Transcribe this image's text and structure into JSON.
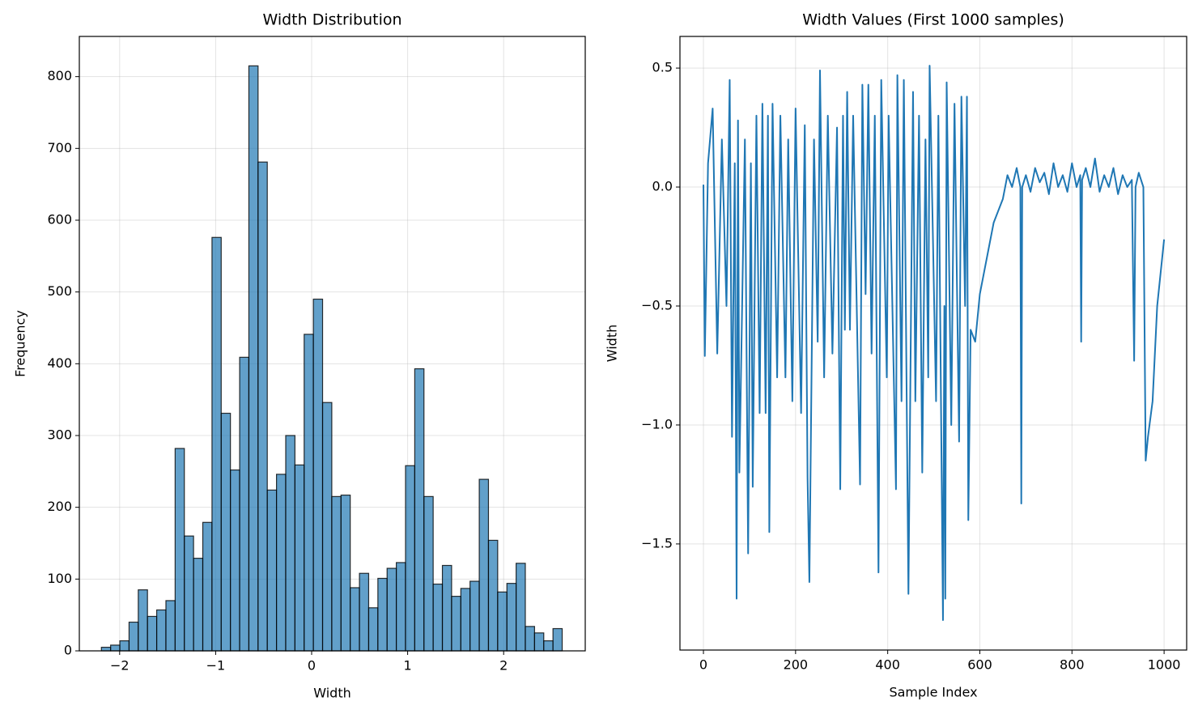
{
  "chart_data": [
    {
      "type": "histogram",
      "title": "Width Distribution",
      "xlabel": "Width",
      "ylabel": "Frequency",
      "bins": [
        -2.19,
        -2.094,
        -1.998,
        -1.902,
        -1.806,
        -1.71,
        -1.614,
        -1.518,
        -1.422,
        -1.326,
        -1.23,
        -1.134,
        -1.038,
        -0.942,
        -0.846,
        -0.75,
        -0.654,
        -0.558,
        -0.462,
        -0.366,
        -0.27,
        -0.174,
        -0.078,
        0.018,
        0.114,
        0.21,
        0.306,
        0.402,
        0.498,
        0.594,
        0.69,
        0.786,
        0.882,
        0.978,
        1.074,
        1.17,
        1.266,
        1.362,
        1.458,
        1.554,
        1.65,
        1.746,
        1.842,
        1.938,
        2.034,
        2.13,
        2.226,
        2.322,
        2.418,
        2.514,
        2.61
      ],
      "values": [
        5,
        8,
        14,
        40,
        85,
        48,
        57,
        70,
        282,
        160,
        129,
        179,
        576,
        331,
        252,
        409,
        815,
        681,
        224,
        246,
        300,
        259,
        441,
        490,
        346,
        215,
        217,
        88,
        108,
        60,
        101,
        115,
        123,
        258,
        393,
        215,
        93,
        119,
        76,
        87,
        97,
        239,
        154,
        82,
        94,
        122,
        34,
        25,
        14,
        31
      ],
      "color": "#1f77b4",
      "xlim": [
        -2.42,
        2.85
      ],
      "ylim": [
        0,
        856
      ],
      "xticks": [
        {
          "value": -2,
          "label": "−2"
        },
        {
          "value": -1,
          "label": "−1"
        },
        0,
        1,
        2
      ],
      "yticks": [
        0,
        100,
        200,
        300,
        400,
        500,
        600,
        700,
        800
      ],
      "grid": true
    },
    {
      "type": "line",
      "title": "Width Values (First 1000 samples)",
      "xlabel": "Sample Index",
      "ylabel": "Width",
      "x": [
        0,
        3,
        10,
        20,
        30,
        40,
        50,
        57,
        62,
        68,
        72,
        75,
        78,
        90,
        97,
        103,
        107,
        115,
        122,
        128,
        135,
        140,
        143,
        150,
        160,
        167,
        178,
        184,
        193,
        200,
        212,
        220,
        226,
        230,
        240,
        248,
        253,
        262,
        270,
        280,
        290,
        297,
        303,
        307,
        312,
        318,
        325,
        340,
        345,
        352,
        358,
        365,
        372,
        380,
        386,
        398,
        402,
        418,
        421,
        430,
        435,
        445,
        455,
        460,
        468,
        475,
        482,
        488,
        491,
        505,
        510,
        520,
        523,
        525,
        528,
        538,
        545,
        555,
        560,
        568,
        572,
        575,
        580,
        590,
        600,
        610,
        620,
        630,
        640,
        650,
        660,
        670,
        680,
        688,
        690,
        692,
        700,
        710,
        720,
        730,
        740,
        750,
        760,
        770,
        780,
        790,
        800,
        810,
        818,
        820,
        822,
        830,
        840,
        850,
        860,
        870,
        880,
        890,
        900,
        910,
        920,
        930,
        935,
        938,
        945,
        955,
        960,
        965,
        975,
        985,
        1000
      ],
      "values": [
        0.01,
        -0.71,
        0.1,
        0.33,
        -0.7,
        0.2,
        -0.5,
        0.45,
        -1.05,
        0.1,
        -1.73,
        0.28,
        -1.2,
        0.2,
        -1.54,
        0.1,
        -1.26,
        0.3,
        -0.95,
        0.35,
        -0.95,
        0.3,
        -1.45,
        0.35,
        -0.8,
        0.3,
        -0.8,
        0.2,
        -0.9,
        0.33,
        -0.95,
        0.26,
        -1.22,
        -1.66,
        0.2,
        -0.65,
        0.49,
        -0.8,
        0.3,
        -0.7,
        0.25,
        -1.27,
        0.3,
        -0.6,
        0.4,
        -0.6,
        0.3,
        -1.25,
        0.43,
        -0.45,
        0.43,
        -0.7,
        0.3,
        -1.62,
        0.45,
        -0.8,
        0.3,
        -1.27,
        0.47,
        -0.9,
        0.45,
        -1.71,
        0.4,
        -0.9,
        0.3,
        -1.2,
        0.2,
        -0.8,
        0.51,
        -0.9,
        0.3,
        -1.82,
        -0.5,
        -1.73,
        0.44,
        -1.0,
        0.35,
        -1.07,
        0.38,
        -0.5,
        0.38,
        -1.4,
        -0.6,
        -0.65,
        -0.45,
        -0.35,
        -0.25,
        -0.15,
        -0.1,
        -0.05,
        0.05,
        0.0,
        0.08,
        0.0,
        -1.33,
        0.0,
        0.05,
        -0.02,
        0.08,
        0.02,
        0.06,
        -0.03,
        0.1,
        0.0,
        0.05,
        -0.02,
        0.1,
        0.0,
        0.05,
        -0.65,
        0.03,
        0.08,
        0.0,
        0.12,
        -0.02,
        0.05,
        0.0,
        0.08,
        -0.03,
        0.05,
        0.0,
        0.03,
        -0.73,
        0.0,
        0.06,
        0.0,
        -1.15,
        -1.05,
        -0.9,
        -0.5,
        -0.22
      ],
      "color": "#1f77b4",
      "xlim": [
        -51,
        1049
      ],
      "ylim": [
        -1.946,
        0.633
      ],
      "xticks": [
        0,
        200,
        400,
        600,
        800,
        1000
      ],
      "yticks": [
        {
          "value": -1.5,
          "label": "−1.5"
        },
        {
          "value": -1.0,
          "label": "−1.0"
        },
        {
          "value": -0.5,
          "label": "−0.5"
        },
        {
          "value": 0.0,
          "label": "0.0"
        },
        0.5
      ],
      "grid": true
    }
  ]
}
